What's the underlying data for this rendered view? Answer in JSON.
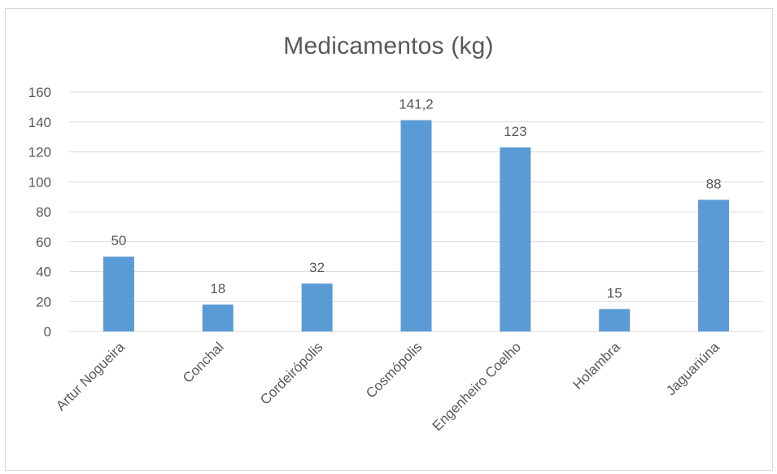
{
  "chart_data": {
    "type": "bar",
    "title": "Medicamentos (kg)",
    "categories": [
      "Artur Nogueira",
      "Conchal",
      "Cordeirópolis",
      "Cosmópolis",
      "Engenheiro Coelho",
      "Holambra",
      "Jaguariúna"
    ],
    "values": [
      50,
      18,
      32,
      141.2,
      123,
      15,
      88
    ],
    "data_labels": [
      "50",
      "18",
      "32",
      "141,2",
      "123",
      "15",
      "88"
    ],
    "y_ticks": [
      "0",
      "20",
      "40",
      "60",
      "80",
      "100",
      "120",
      "140",
      "160"
    ],
    "ylim": [
      0,
      160
    ],
    "xlabel": "",
    "ylabel": "",
    "grid": true,
    "legend": "none",
    "colors": {
      "bar": "#5b9bd5",
      "grid": "#d9d9d9",
      "text": "#595959"
    }
  }
}
